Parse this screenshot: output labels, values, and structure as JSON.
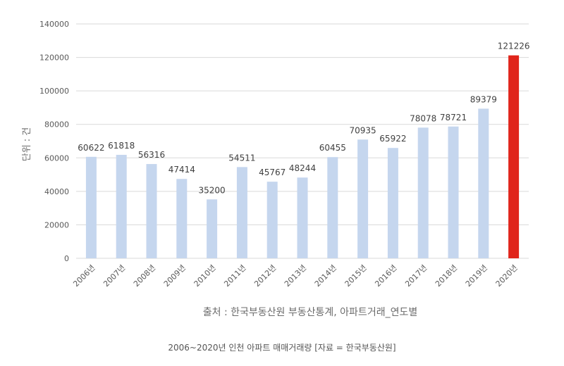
{
  "chart_data": {
    "type": "bar",
    "categories": [
      "2006년",
      "2007년",
      "2008년",
      "2009년",
      "2010년",
      "2011년",
      "2012년",
      "2013년",
      "2014년",
      "2015년",
      "2016년",
      "2017년",
      "2018년",
      "2019년",
      "2020년"
    ],
    "values": [
      60622,
      61818,
      56316,
      47414,
      35200,
      54511,
      45767,
      48244,
      60455,
      70935,
      65922,
      78078,
      78721,
      89379,
      121226
    ],
    "ylim": [
      0,
      140000
    ],
    "yticks": [
      0,
      20000,
      40000,
      60000,
      80000,
      100000,
      120000,
      140000
    ],
    "ylabel": "단위 : 건",
    "xlabel": "출처 : 한국부동산원 부동산통계, 아파트거래_연도별",
    "grid": true,
    "bar_color": "#c5d6ee",
    "highlight_color": "#e0251b",
    "highlight_index": 14
  },
  "caption": "2006~2020년 인천 아파트 매매거래량 [자료 = 한국부동산원]"
}
